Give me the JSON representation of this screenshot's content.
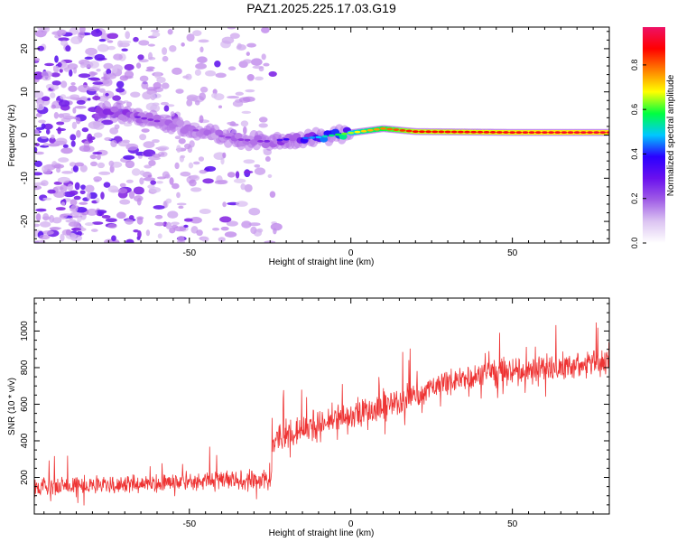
{
  "title": "PAZ1.2025.225.17.03.G19",
  "colors": {
    "snr_line": "#ee3333",
    "colormap": [
      "#ffffff",
      "#dcc4f2",
      "#b87ae8",
      "#8a2be2",
      "#2a00ff",
      "#00c8ff",
      "#00ff40",
      "#ffff00",
      "#ff8000",
      "#ff0000",
      "#ee1166"
    ]
  },
  "chart_data": [
    {
      "type": "heatmap",
      "xlabel": "Height of straight line (km)",
      "ylabel": "Frequency (Hz)",
      "xlim": [
        -98,
        80
      ],
      "ylim": [
        -25,
        25
      ],
      "x_ticks": [
        -50,
        0,
        50
      ],
      "y_ticks": [
        -20,
        -10,
        0,
        10,
        20
      ],
      "colorbar": {
        "label": "Normalized spectral amplitude",
        "range": [
          0,
          0.97
        ],
        "ticks": [
          "0.0",
          "0.2",
          "0.4",
          "0.6",
          "0.8"
        ]
      },
      "ridge": {
        "description_points": [
          {
            "x": -75,
            "y": 5.5
          },
          {
            "x": -65,
            "y": 4
          },
          {
            "x": -55,
            "y": 2.5
          },
          {
            "x": -45,
            "y": 0.5
          },
          {
            "x": -35,
            "y": -1
          },
          {
            "x": -27,
            "y": -1.5
          },
          {
            "x": -20,
            "y": -1
          },
          {
            "x": -10,
            "y": -0.5
          },
          {
            "x": 0,
            "y": 0.5
          },
          {
            "x": 5,
            "y": 1
          },
          {
            "x": 10,
            "y": 1.5
          },
          {
            "x": 20,
            "y": 0.8
          },
          {
            "x": 50,
            "y": 0.6
          },
          {
            "x": 80,
            "y": 0.6
          }
        ],
        "amplitude_points": [
          {
            "x": -75,
            "a": 0.35
          },
          {
            "x": -62,
            "a": 0.3
          },
          {
            "x": -45,
            "a": 0.25
          },
          {
            "x": -27,
            "a": 0.3
          },
          {
            "x": -10,
            "a": 0.5
          },
          {
            "x": 5,
            "a": 0.75
          },
          {
            "x": 20,
            "a": 0.9
          },
          {
            "x": 80,
            "a": 0.95
          }
        ]
      }
    },
    {
      "type": "line",
      "xlabel": "Height of straight line (km)",
      "ylabel": "SNR (10 * v/v)",
      "xlim": [
        -98,
        80
      ],
      "ylim": [
        0,
        1180
      ],
      "x_ticks": [
        -50,
        0,
        50
      ],
      "y_ticks": [
        200,
        400,
        600,
        800,
        1000
      ],
      "series": [
        {
          "x": [
            -98,
            -90,
            -80,
            -70,
            -60,
            -50,
            -40,
            -30,
            -25,
            -24,
            -22,
            -15,
            -10,
            -5,
            0,
            5,
            10,
            15,
            20,
            25,
            30,
            35,
            40,
            45,
            50,
            55,
            60,
            65,
            70,
            75,
            80
          ],
          "y": [
            130,
            150,
            155,
            160,
            165,
            175,
            180,
            185,
            180,
            360,
            420,
            450,
            480,
            500,
            530,
            560,
            580,
            610,
            640,
            680,
            720,
            740,
            750,
            760,
            770,
            780,
            790,
            800,
            810,
            820,
            830
          ]
        }
      ]
    }
  ]
}
